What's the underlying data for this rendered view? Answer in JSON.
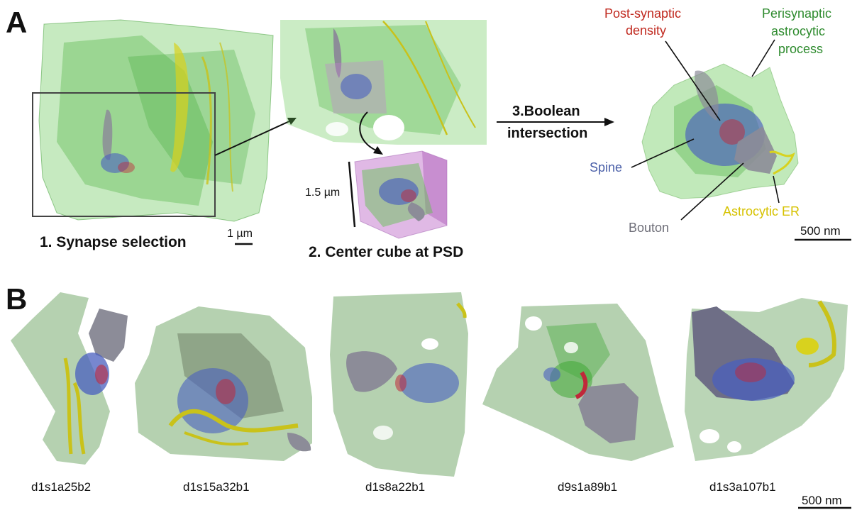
{
  "panel_a": {
    "letter": "A",
    "step1_caption": "1. Synapse selection",
    "step1_scale": "1 µm",
    "step2_caption": "2. Center cube at PSD",
    "step2_scale": "1.5 µm",
    "step3_line1": "3.Boolean",
    "step3_line2": "intersection",
    "labels": {
      "psd_line1": "Post-synaptic",
      "psd_line2": "density",
      "pap_line1": "Perisynaptic",
      "pap_line2": "astrocytic",
      "pap_line3": "process",
      "spine": "Spine",
      "bouton": "Bouton",
      "astro_er": "Astrocytic ER"
    },
    "scale_label": "500 nm"
  },
  "panel_b": {
    "letter": "B",
    "synapses": [
      {
        "id": "d1s1a25b2"
      },
      {
        "id": "d1s15a32b1"
      },
      {
        "id": "d1s8a22b1"
      },
      {
        "id": "d9s1a89b1"
      },
      {
        "id": "d1s3a107b1"
      }
    ],
    "scale_label": "500 nm"
  },
  "colors": {
    "astrocyte": "#5cc44a",
    "astro_er": "#d8d21e",
    "spine": "#4a5fbf",
    "psd": "#c0283a",
    "bouton": "#8c8c98",
    "cube": "#c77fd0",
    "label_red": "#c0281e",
    "label_green": "#2e8b2e",
    "label_blue": "#4a5fa8",
    "label_gray": "#6e6e78",
    "label_yellow": "#d6c200"
  }
}
